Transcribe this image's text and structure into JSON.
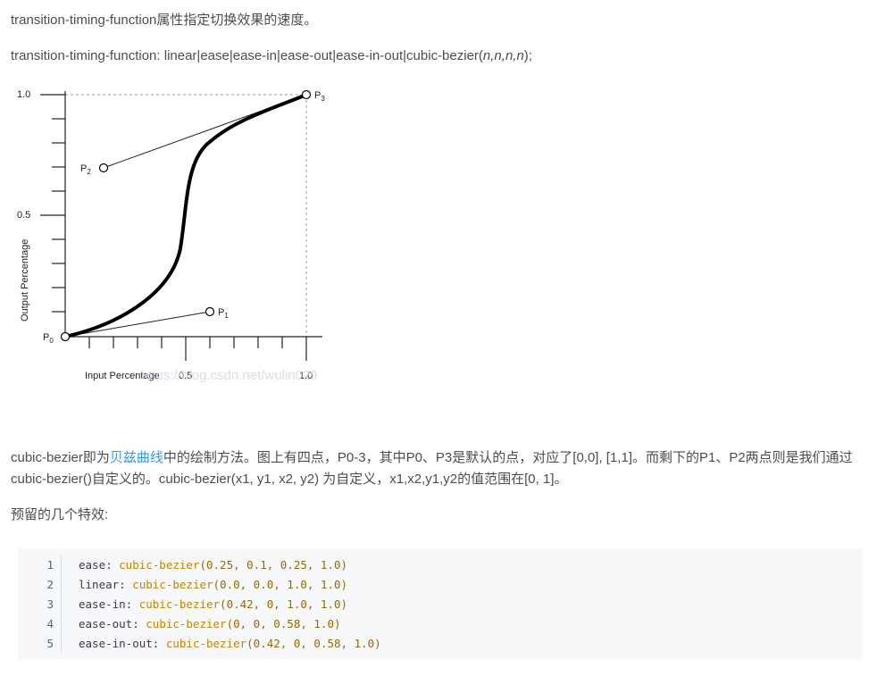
{
  "intro": {
    "sentence": "transition-timing-function属性指定切换效果的速度。",
    "syntax_prefix": "transition-timing-function: linear|ease|ease-in|ease-out|ease-in-out|cubic-bezier(",
    "syntax_args": "n,n,n,n",
    "syntax_suffix": ");"
  },
  "figure": {
    "y_tick_top": "1.0",
    "y_tick_mid": "0.5",
    "x_tick_mid": "0.5",
    "x_tick_end": "1.0",
    "ylabel": "Output Percentage",
    "xlabel": "Input Percentage",
    "point_p": "P",
    "sub0": "0",
    "sub1": "1",
    "sub2": "2",
    "sub3": "3",
    "watermark": "https://blog.csdn.net/wulin029"
  },
  "description": {
    "part1": "cubic-bezier即为",
    "link": "贝兹曲线",
    "part2": "中的绘制方法。图上有四点，P0-3，其中P0、P3是默认的点，对应了[0,0], [1,1]。而剩下的P1、P2两点则是我们通过cubic-bezier()自定义的。cubic-bezier(x1, y1, x2, y2) 为自定义，x1,x2,y1,y2的值范围在[0, 1]。"
  },
  "presets_heading": "预留的几个特效:",
  "code": [
    {
      "num": "1",
      "name": "ease: ",
      "fn": "cubic-bezier",
      "args": "(0.25, 0.1, 0.25, 1.0)"
    },
    {
      "num": "2",
      "name": "linear: ",
      "fn": "cubic-bezier",
      "args": "(0.0, 0.0, 1.0, 1.0)"
    },
    {
      "num": "3",
      "name": "ease-in: ",
      "fn": "cubic-bezier",
      "args": "(0.42, 0, 1.0, 1.0)"
    },
    {
      "num": "4",
      "name": "ease-out: ",
      "fn": "cubic-bezier",
      "args": "(0, 0, 0.58, 1.0)"
    },
    {
      "num": "5",
      "name": "ease-in-out: ",
      "fn": "cubic-bezier",
      "args": "(0.42, 0, 0.58, 1.0)"
    }
  ]
}
